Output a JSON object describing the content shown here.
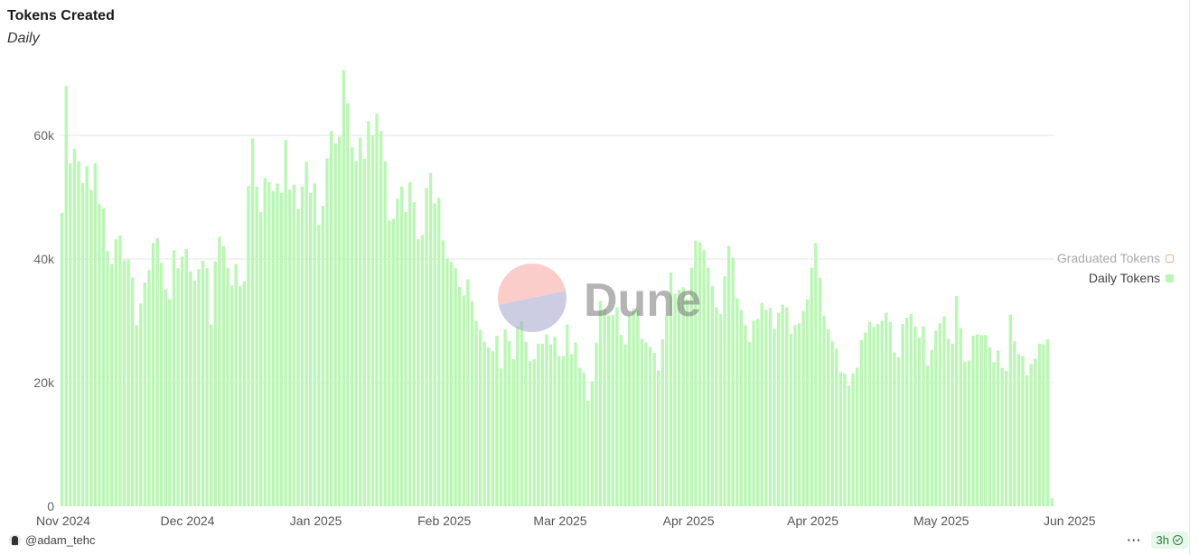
{
  "header": {
    "title": "Tokens Created",
    "subtitle": "Daily"
  },
  "watermark": {
    "text": "Dune"
  },
  "footer": {
    "author": "@adam_tehc",
    "freshness": "3h",
    "more_label": "···"
  },
  "legend": [
    {
      "label": "Graduated Tokens",
      "active": false,
      "color": "#f5b184"
    },
    {
      "label": "Daily Tokens",
      "active": true,
      "color": "#baf7b4"
    }
  ],
  "chart_data": {
    "type": "bar",
    "title": "Tokens Created",
    "subtitle": "Daily",
    "ylim": [
      0,
      72000
    ],
    "yticks": [
      {
        "value": 0,
        "label": "0"
      },
      {
        "value": 20000,
        "label": "20k"
      },
      {
        "value": 40000,
        "label": "40k"
      },
      {
        "value": 60000,
        "label": "60k"
      }
    ],
    "xticks": [
      {
        "index": 0,
        "label": "Nov 2024"
      },
      {
        "index": 30,
        "label": "Dec 2024"
      },
      {
        "index": 61,
        "label": "Jan 2025"
      },
      {
        "index": 92,
        "label": "Feb 2025"
      },
      {
        "index": 120,
        "label": "Mar 2025"
      },
      {
        "index": 151,
        "label": "Apr 2025"
      },
      {
        "index": 181,
        "label": "Apr 2025"
      },
      {
        "index": 212,
        "label": "May 2025"
      },
      {
        "index": 243,
        "label": "Jun 2025"
      }
    ],
    "grid": true,
    "legend_position": "right",
    "series": [
      {
        "name": "Daily Tokens",
        "color": "#baf7b4",
        "values": [
          47500,
          68000,
          55500,
          57800,
          55800,
          52300,
          55000,
          51200,
          55500,
          48900,
          48200,
          41300,
          39200,
          43200,
          43800,
          39800,
          39900,
          37000,
          29300,
          32800,
          36200,
          38200,
          42600,
          43400,
          39400,
          35100,
          33500,
          41400,
          38500,
          40400,
          41600,
          38000,
          36500,
          38300,
          39700,
          38500,
          29400,
          39600,
          43600,
          42100,
          38600,
          35700,
          39200,
          35600,
          36400,
          51800,
          59500,
          51700,
          47600,
          53100,
          52400,
          51000,
          52200,
          50700,
          59300,
          51200,
          52000,
          48100,
          51700,
          55700,
          50700,
          52200,
          45500,
          48600,
          56300,
          60700,
          58700,
          59800,
          70600,
          65200,
          58100,
          55800,
          59600,
          56200,
          62300,
          60000,
          63500,
          60700,
          55800,
          46200,
          46500,
          49700,
          51700,
          47600,
          52400,
          49200,
          43200,
          43900,
          51500,
          53900,
          49000,
          49900,
          43000,
          40100,
          39500,
          38500,
          35500,
          34100,
          36700,
          33200,
          30000,
          28500,
          26600,
          25700,
          25100,
          27600,
          22300,
          28600,
          26700,
          23800,
          29100,
          29900,
          26600,
          23500,
          23800,
          26300,
          26300,
          27800,
          26200,
          27400,
          24300,
          24300,
          29400,
          24600,
          26500,
          22400,
          21600,
          17100,
          20200,
          26500,
          33200,
          31900,
          30900,
          30900,
          32200,
          27700,
          26200,
          30900,
          32000,
          31700,
          27100,
          26500,
          25800,
          24800,
          22000,
          27000,
          30800,
          37800,
          34400,
          35000,
          35400,
          33500,
          38600,
          43000,
          42700,
          41500,
          38600,
          35600,
          32200,
          31100,
          37200,
          42100,
          40200,
          33600,
          31800,
          29300,
          26600,
          30000,
          30300,
          32900,
          31800,
          32100,
          28700,
          31300,
          32600,
          32200,
          27900,
          29300,
          29600,
          31600,
          33500,
          38600,
          42600,
          37000,
          30800,
          28600,
          26700,
          25500,
          21700,
          21500,
          19500,
          21500,
          22400,
          26900,
          28100,
          29800,
          29000,
          29500,
          30000,
          31300,
          29800,
          24900,
          24100,
          29500,
          30500,
          31100,
          29100,
          27300,
          29100,
          22800,
          25300,
          28400,
          29600,
          30700,
          27100,
          26300,
          34000,
          28800,
          23400,
          23600,
          27600,
          27800,
          27700,
          27700,
          25700,
          23300,
          25200,
          22400,
          21900,
          31000,
          26700,
          24600,
          24300,
          21200,
          23000,
          23900,
          26300,
          26200,
          27000,
          1300
        ]
      }
    ]
  }
}
